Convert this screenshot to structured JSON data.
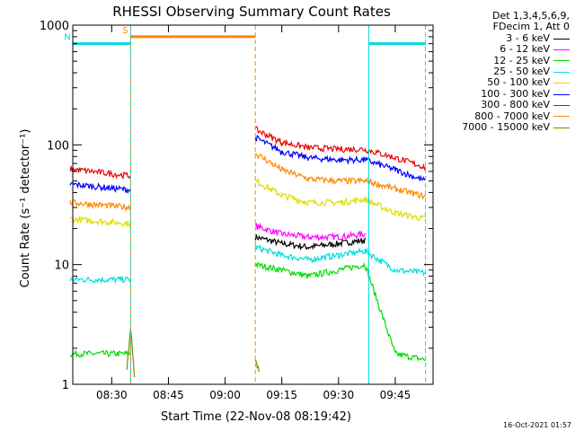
{
  "chart_data": {
    "type": "line",
    "title": "RHESSI Observing Summary Count Rates",
    "xlabel": "Start Time (22-Nov-08 08:19:42)",
    "ylabel": "Count Rate (s⁻¹ detector⁻¹)",
    "y_scale": "log",
    "ylim": [
      1,
      1000
    ],
    "xlim": [
      "08:19:42",
      "09:55:00"
    ],
    "x_ticks": [
      "08:30",
      "08:45",
      "09:00",
      "09:15",
      "09:30",
      "09:45"
    ],
    "y_ticks": [
      "1",
      "10",
      "100",
      "1000"
    ],
    "grid": false,
    "legend_position": "right",
    "legend_header": [
      "Det 1,3,4,5,6,9,",
      "FDecim 1, Att 0"
    ],
    "series": [
      {
        "name": "3 - 6 keV",
        "color": "#000000",
        "x": [
          "09:08",
          "09:15",
          "09:22",
          "09:30",
          "09:37"
        ],
        "y": [
          17,
          15,
          14,
          15,
          16
        ]
      },
      {
        "name": "6 - 12 keV",
        "color": "#ff00ff",
        "x": [
          "09:08",
          "09:15",
          "09:22",
          "09:30",
          "09:37"
        ],
        "y": [
          21,
          18,
          17,
          17,
          18
        ]
      },
      {
        "name": "12 - 25 keV",
        "color": "#00dd00",
        "x": [
          "08:19",
          "08:35",
          "09:08",
          "09:15",
          "09:22",
          "09:30",
          "09:37",
          "09:45",
          "09:53"
        ],
        "y": [
          1.8,
          1.8,
          10,
          9,
          8,
          9,
          10,
          1.8,
          1.6
        ]
      },
      {
        "name": "25 - 50 keV",
        "color": "#00dddd",
        "x": [
          "08:19",
          "08:35",
          "09:08",
          "09:15",
          "09:22",
          "09:30",
          "09:37",
          "09:45",
          "09:53"
        ],
        "y": [
          7.5,
          7.5,
          14,
          12,
          11,
          12,
          13,
          9,
          8.5
        ]
      },
      {
        "name": "50 - 100 keV",
        "color": "#dddd00",
        "x": [
          "08:19",
          "08:35",
          "09:08",
          "09:15",
          "09:22",
          "09:30",
          "09:37",
          "09:45",
          "09:53"
        ],
        "y": [
          24,
          22,
          50,
          38,
          33,
          33,
          35,
          27,
          24
        ]
      },
      {
        "name": "100 - 300 keV",
        "color": "#0000ff",
        "x": [
          "08:19",
          "08:35",
          "09:08",
          "09:15",
          "09:22",
          "09:30",
          "09:37",
          "09:45",
          "09:53"
        ],
        "y": [
          47,
          42,
          115,
          88,
          78,
          75,
          75,
          62,
          50
        ]
      },
      {
        "name": "300 - 800 keV",
        "color": "#ee0000",
        "x": [
          "08:19",
          "08:35",
          "09:08",
          "09:15",
          "09:22",
          "09:30",
          "09:37",
          "09:45",
          "09:53"
        ],
        "y": [
          63,
          55,
          135,
          105,
          95,
          92,
          92,
          78,
          65
        ]
      },
      {
        "name": "800 - 7000 keV",
        "color": "#ff8800",
        "x": [
          "08:19",
          "08:35",
          "09:08",
          "09:15",
          "09:22",
          "09:30",
          "09:37",
          "09:45",
          "09:53"
        ],
        "y": [
          33,
          30,
          85,
          62,
          52,
          50,
          50,
          43,
          37
        ]
      },
      {
        "name": "7000 - 15000 keV",
        "color": "#888800",
        "x": [
          "08:34",
          "08:35",
          "08:36",
          "09:08",
          "09:09"
        ],
        "y": [
          1.3,
          3,
          1.2,
          1.6,
          1.3
        ]
      }
    ],
    "flags": [
      {
        "label": "S",
        "color": "#ff8800",
        "start": "08:35",
        "end": "09:08",
        "level": 800
      },
      {
        "label": "N",
        "color": "#00dddd",
        "start": "08:19:42",
        "end": "08:35",
        "level": 700
      },
      {
        "label": "",
        "color": "#00dddd",
        "start": "09:38",
        "end": "09:53",
        "level": 700
      }
    ]
  },
  "timestamp": "16-Oct-2021 01:57"
}
